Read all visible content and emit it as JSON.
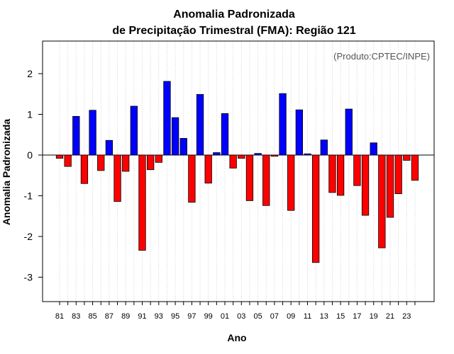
{
  "chart_data": {
    "type": "bar",
    "title_line1": "Anomalia Padronizada",
    "title_line2": "de Precipitação Trimestral (FMA): Região 121",
    "xlabel": "Ano",
    "ylabel": "Anomalia Padronizada",
    "credit": "(Produto:CPTEC/INPE)",
    "ylim": [
      -3.6,
      2.8
    ],
    "yticks": [
      -3,
      -2,
      -1,
      0,
      1,
      2
    ],
    "grid": true,
    "colors": {
      "positive": "#0000ff",
      "negative": "#ff0000",
      "outline": "#000000"
    },
    "categories": [
      "81",
      "82",
      "83",
      "84",
      "85",
      "86",
      "87",
      "88",
      "89",
      "90",
      "91",
      "92",
      "93",
      "94",
      "95",
      "96",
      "97",
      "98",
      "99",
      "00",
      "01",
      "02",
      "03",
      "04",
      "05",
      "06",
      "07",
      "08",
      "09",
      "10",
      "11",
      "12",
      "13",
      "14",
      "15",
      "16",
      "17",
      "18",
      "19",
      "20",
      "21",
      "22",
      "23",
      "24"
    ],
    "tick_labels": [
      "81",
      "83",
      "85",
      "87",
      "89",
      "91",
      "93",
      "95",
      "97",
      "99",
      "01",
      "03",
      "05",
      "07",
      "09",
      "11",
      "13",
      "15",
      "17",
      "19",
      "21",
      "23"
    ],
    "values": [
      -0.08,
      -0.28,
      0.95,
      -0.7,
      1.1,
      -0.38,
      0.36,
      -1.14,
      -0.4,
      1.2,
      -2.34,
      -0.36,
      -0.18,
      1.81,
      0.92,
      0.41,
      -1.16,
      1.49,
      -0.69,
      0.06,
      1.02,
      -0.32,
      -0.08,
      -1.12,
      0.04,
      -1.24,
      -0.03,
      1.51,
      -1.36,
      1.11,
      0.03,
      -2.64,
      0.37,
      -0.92,
      -0.99,
      1.13,
      -0.75,
      -1.48,
      0.3,
      -2.28,
      -1.53,
      -0.95,
      -0.13,
      -0.62
    ]
  }
}
